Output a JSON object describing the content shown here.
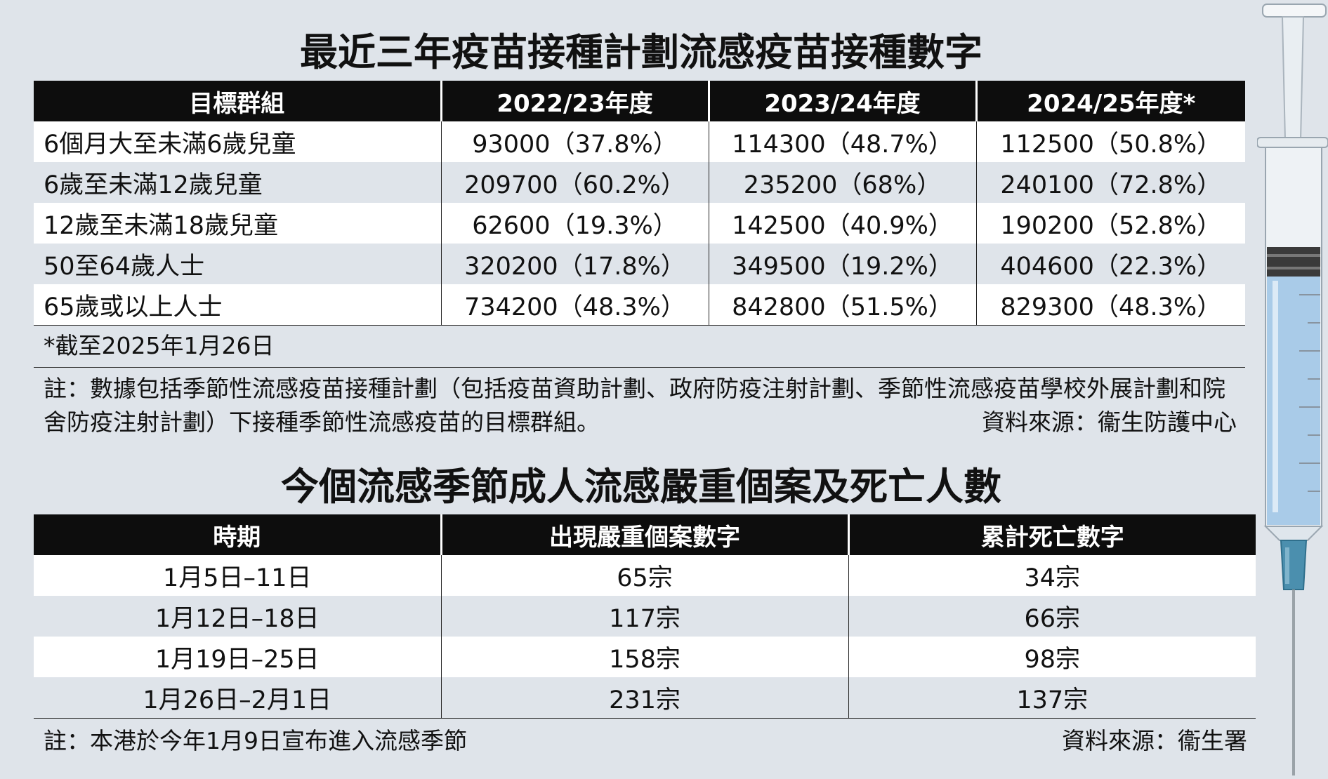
{
  "table1": {
    "title": "最近三年疫苗接種計劃流感疫苗接種數字",
    "headers": [
      "目標群組",
      "2022/23年度",
      "2023/24年度",
      "2024/25年度*"
    ],
    "rows": [
      [
        "6個月大至未滿6歲兒童",
        "93000（37.8%）",
        "114300（48.7%）",
        "112500（50.8%）"
      ],
      [
        "6歲至未滿12歲兒童",
        "209700（60.2%）",
        "235200（68%）",
        "240100（72.8%）"
      ],
      [
        "12歲至未滿18歲兒童",
        "62600（19.3%）",
        "142500（40.9%）",
        "190200（52.8%）"
      ],
      [
        "50至64歲人士",
        "320200（17.8%）",
        "349500（19.2%）",
        "404600（22.3%）"
      ],
      [
        "65歲或以上人士",
        "734200（48.3%）",
        "842800（51.5%）",
        "829300（48.3%）"
      ]
    ],
    "footnote": "*截至2025年1月26日",
    "note": "註：數據包括季節性流感疫苗接種計劃（包括疫苗資助計劃、政府防疫注射計劃、季節性流感疫苗學校外展計劃和院舍防疫注射計劃）下接種季節性流感疫苗的目標群組。",
    "source": "資料來源：衞生防護中心"
  },
  "table2": {
    "title": "今個流感季節成人流感嚴重個案及死亡人數",
    "headers": [
      "時期",
      "出現嚴重個案數字",
      "累計死亡數字"
    ],
    "rows": [
      [
        "1月5日–11日",
        "65宗",
        "34宗"
      ],
      [
        "1月12日–18日",
        "117宗",
        "66宗"
      ],
      [
        "1月19日–25日",
        "158宗",
        "98宗"
      ],
      [
        "1月26日–2月1日",
        "231宗",
        "137宗"
      ]
    ],
    "note": "註：本港於今年1月9日宣布進入流感季節",
    "source": "資料來源：衞生署"
  },
  "illustration": {
    "icon": "syringe-icon",
    "barrel_color": "#a9cbe8",
    "needle_hub_color": "#4b8fae"
  }
}
